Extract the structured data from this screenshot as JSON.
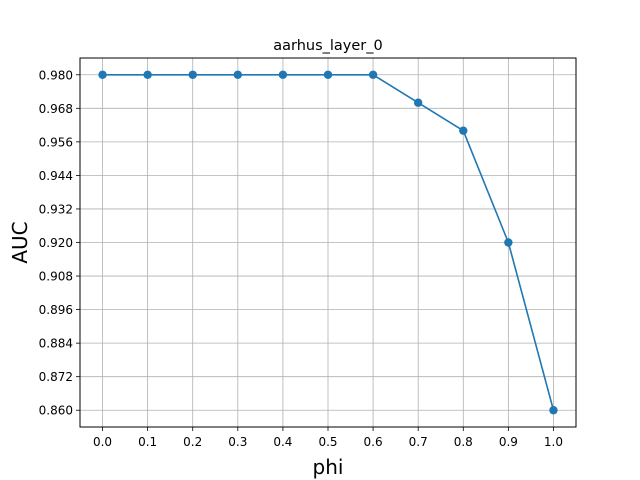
{
  "chart_data": {
    "type": "line",
    "title": "aarhus_layer_0",
    "xlabel": "phi",
    "ylabel": "AUC",
    "x": [
      0.0,
      0.1,
      0.2,
      0.3,
      0.4,
      0.5,
      0.6,
      0.7,
      0.8,
      0.9,
      1.0
    ],
    "x_tick_labels": [
      "0.0",
      "0.1",
      "0.2",
      "0.3",
      "0.4",
      "0.5",
      "0.6",
      "0.7",
      "0.8",
      "0.9",
      "1.0"
    ],
    "y_ticks": [
      0.86,
      0.872,
      0.884,
      0.896,
      0.908,
      0.92,
      0.932,
      0.944,
      0.956,
      0.968,
      0.98
    ],
    "y_tick_labels": [
      "0.860",
      "0.872",
      "0.884",
      "0.896",
      "0.908",
      "0.920",
      "0.932",
      "0.944",
      "0.956",
      "0.968",
      "0.980"
    ],
    "series": [
      {
        "values": [
          0.98,
          0.98,
          0.98,
          0.98,
          0.98,
          0.98,
          0.98,
          0.97,
          0.96,
          0.92,
          0.86
        ]
      }
    ],
    "xlim": [
      -0.05,
      1.05
    ],
    "ylim": [
      0.854,
      0.986
    ],
    "grid": true,
    "marker": "circle",
    "line_color": "#1f77b4",
    "grid_color": "#b0b0b0"
  }
}
